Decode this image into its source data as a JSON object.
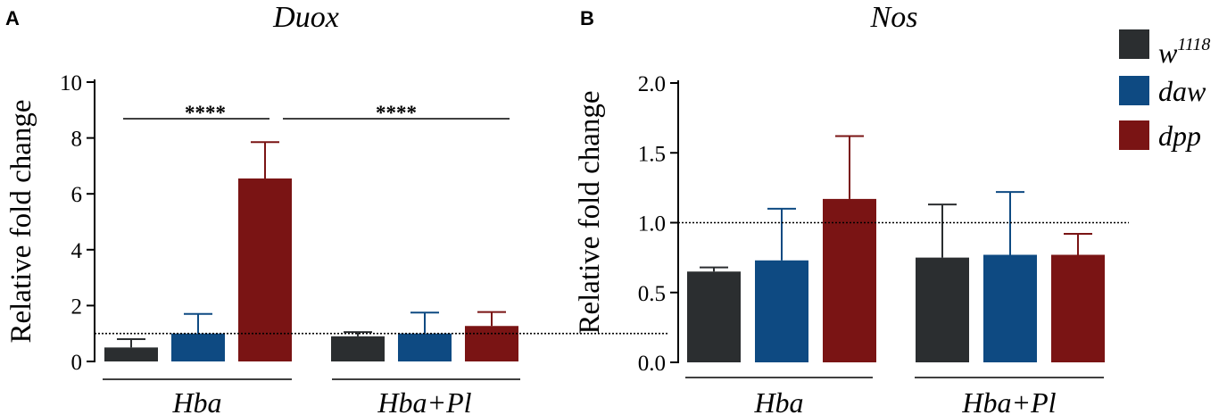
{
  "chart_data": [
    {
      "panel": "A",
      "type": "bar",
      "title": "Duox",
      "ylabel": "Relative fold change",
      "xlabel": "",
      "ylim": [
        0,
        10
      ],
      "yticks": [
        0,
        2,
        4,
        6,
        8,
        10
      ],
      "ytick_labels": [
        "0",
        "2",
        "4",
        "6",
        "8",
        "10"
      ],
      "reference_line": 1,
      "categories": [
        "Hba",
        "Hba+Pl"
      ],
      "series": [
        {
          "name": "w1118",
          "color": "#2b2e30",
          "values": [
            0.5,
            0.9
          ],
          "errors": [
            0.3,
            0.15
          ]
        },
        {
          "name": "daw",
          "color": "#0e4a82",
          "values": [
            1.0,
            1.0
          ],
          "errors": [
            0.7,
            0.75
          ]
        },
        {
          "name": "dpp",
          "color": "#7a1414",
          "values": [
            6.55,
            1.27
          ],
          "errors": [
            1.3,
            0.5
          ]
        }
      ],
      "significance": [
        {
          "label": "****",
          "from": "Hba:w1118",
          "to": "Hba:dpp"
        },
        {
          "label": "****",
          "from": "Hba:dpp",
          "to": "Hba+Pl:dpp"
        }
      ]
    },
    {
      "panel": "B",
      "type": "bar",
      "title": "Nos",
      "ylabel": "Relative fold change",
      "xlabel": "",
      "ylim": [
        0,
        2.0
      ],
      "yticks": [
        0,
        0.5,
        1.0,
        1.5,
        2.0
      ],
      "ytick_labels": [
        "0.0",
        "0.5",
        "1.0",
        "1.5",
        "2.0"
      ],
      "reference_line": 1,
      "categories": [
        "Hba",
        "Hba+Pl"
      ],
      "series": [
        {
          "name": "w1118",
          "color": "#2b2e30",
          "values": [
            0.65,
            0.75
          ],
          "errors": [
            0.03,
            0.38
          ]
        },
        {
          "name": "daw",
          "color": "#0e4a82",
          "values": [
            0.73,
            0.77
          ],
          "errors": [
            0.37,
            0.45
          ]
        },
        {
          "name": "dpp",
          "color": "#7a1414",
          "values": [
            1.17,
            0.77
          ],
          "errors": [
            0.45,
            0.15
          ]
        }
      ],
      "significance": []
    }
  ],
  "legend": [
    {
      "base": "w",
      "sup": "1118",
      "color": "#2b2e30"
    },
    {
      "base": "daw",
      "sup": "",
      "color": "#0e4a82"
    },
    {
      "base": "dpp",
      "sup": "",
      "color": "#7a1414"
    }
  ]
}
